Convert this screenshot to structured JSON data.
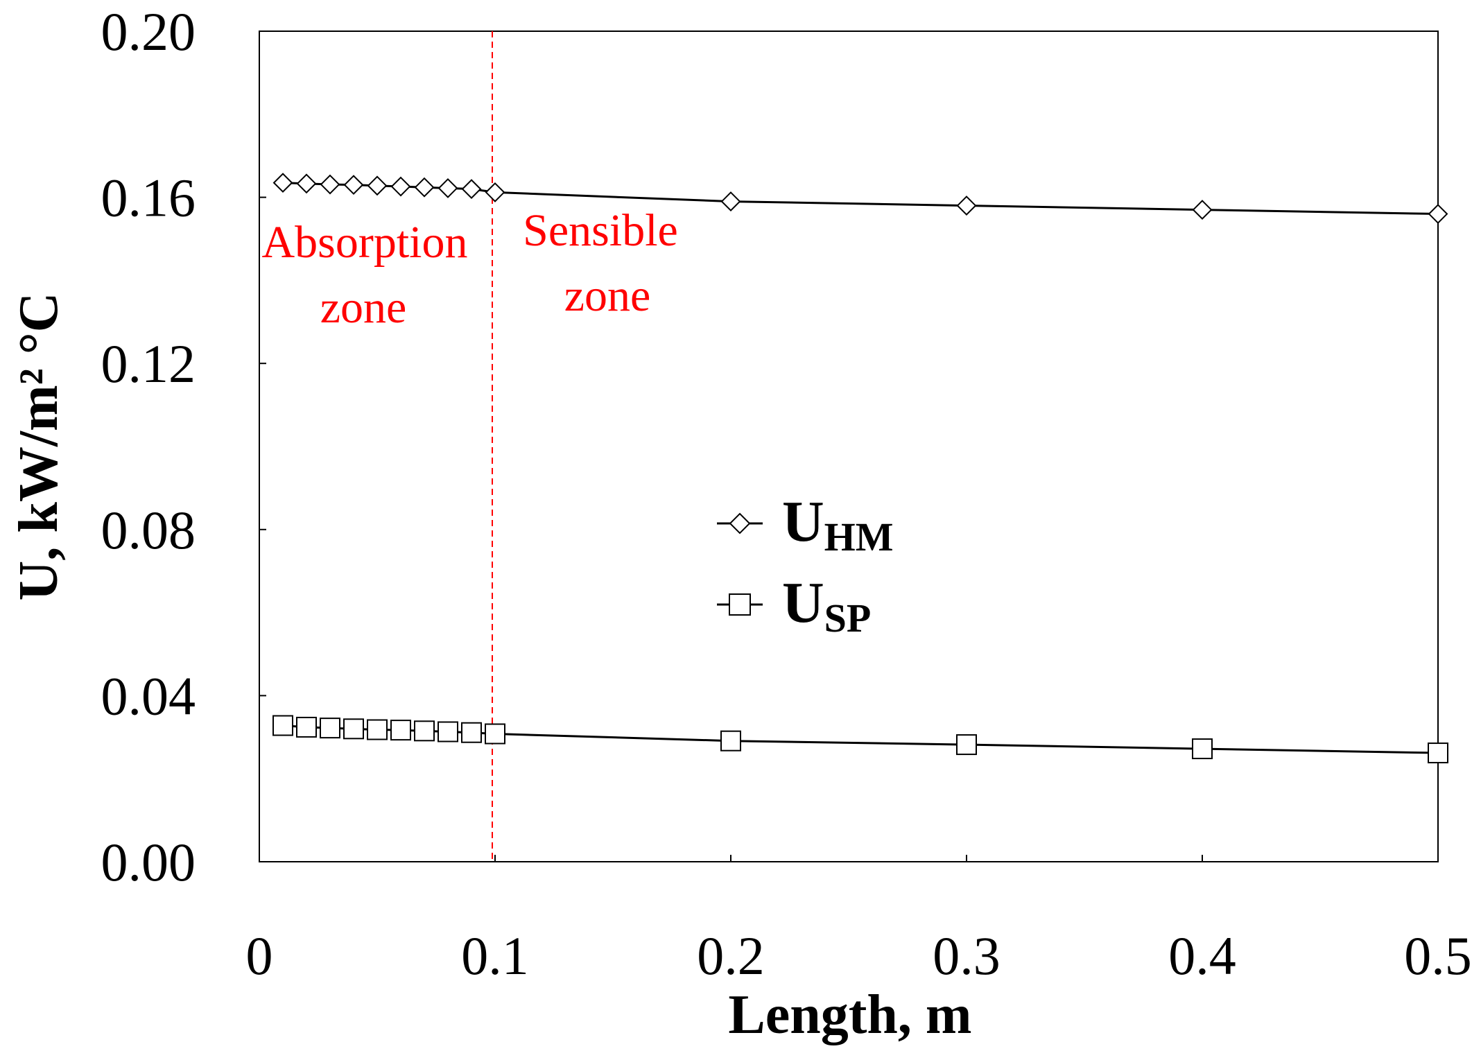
{
  "chart_data": {
    "type": "line",
    "xlabel": "Length, m",
    "ylabel": "U, kW/m² °C",
    "xlim": [
      0,
      0.5
    ],
    "ylim": [
      0,
      0.2
    ],
    "x_ticks": [
      "0",
      "0.1",
      "0.2",
      "0.3",
      "0.4",
      "0.5"
    ],
    "y_ticks": [
      "0.00",
      "0.04",
      "0.08",
      "0.12",
      "0.16",
      "0.20"
    ],
    "grid": false,
    "legend_position": "center",
    "x": [
      0.01,
      0.02,
      0.03,
      0.04,
      0.05,
      0.06,
      0.07,
      0.08,
      0.09,
      0.1,
      0.2,
      0.3,
      0.4,
      0.5
    ],
    "series": [
      {
        "name": "U",
        "name_sub": "HM",
        "marker": "diamond",
        "values": [
          0.1635,
          0.1633,
          0.1631,
          0.163,
          0.1628,
          0.1626,
          0.1624,
          0.1622,
          0.162,
          0.1612,
          0.159,
          0.158,
          0.157,
          0.156
        ]
      },
      {
        "name": "U",
        "name_sub": "SP",
        "marker": "square",
        "values": [
          0.0328,
          0.0324,
          0.0322,
          0.032,
          0.0318,
          0.0317,
          0.0315,
          0.0313,
          0.0311,
          0.0308,
          0.0291,
          0.0282,
          0.0272,
          0.0262
        ]
      }
    ],
    "divider": {
      "x": 0.1,
      "color": "#ff0000",
      "style": "dashed"
    },
    "annotations": {
      "absorption": [
        "Absorption",
        "zone"
      ],
      "sensible": [
        "Sensible",
        "zone"
      ]
    },
    "colors": {
      "series": "#000000",
      "annotation": "#ff0000"
    }
  }
}
